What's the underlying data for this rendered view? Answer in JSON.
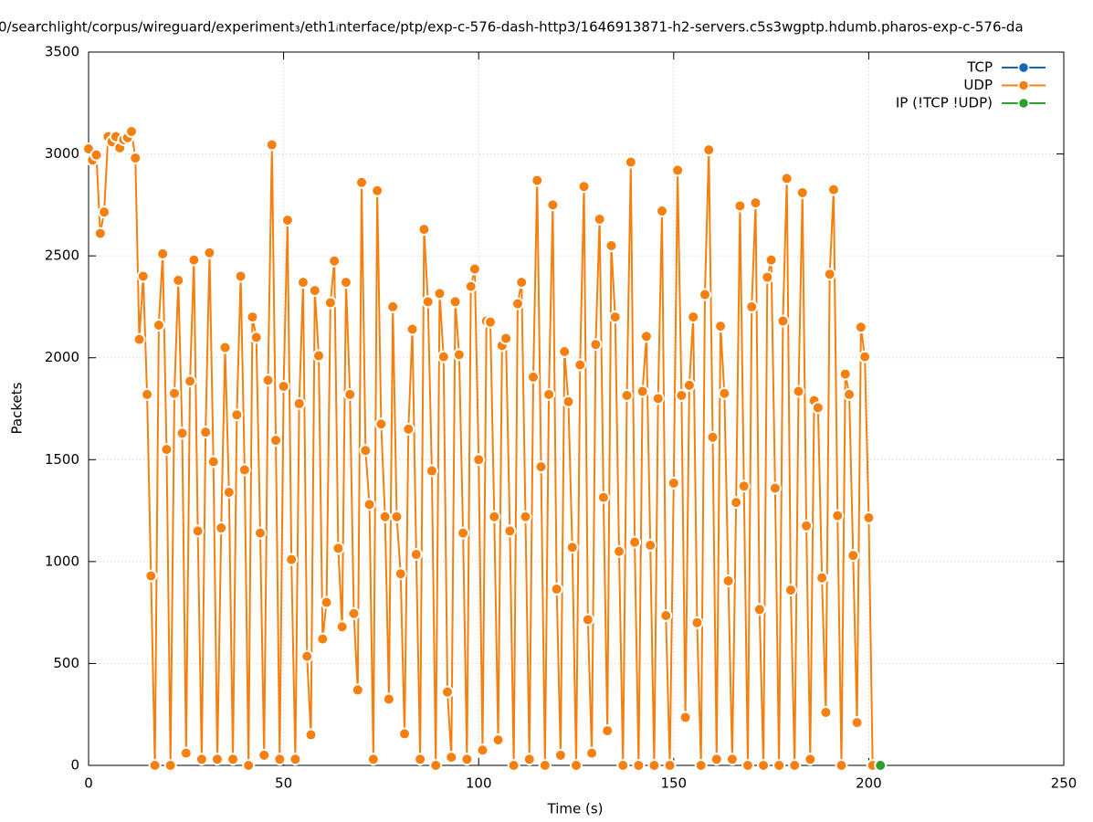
{
  "chart_data": {
    "type": "line",
    "title": "0/searchlight/corpus/wireguard/experiment₃/eth1ᵢnterface/ptp/exp-c-576-dash-http3/1646913871-h2-servers.c5s3wgptp.hdumb.pharos-exp-c-576-da",
    "x_label": "Time (s)",
    "y_label": "Packets",
    "xlim": [
      0,
      250
    ],
    "xticks": [
      0,
      50,
      100,
      150,
      200,
      250
    ],
    "ylim": [
      0,
      3500
    ],
    "yticks": [
      0,
      500,
      1000,
      1500,
      2000,
      2500,
      3000,
      3500
    ],
    "grid": true,
    "legend": "upper right",
    "series": [
      {
        "name": "TCP",
        "color": "#1565b0",
        "x": [],
        "values": []
      },
      {
        "name": "UDP",
        "color": "#f5800f",
        "x": [
          0,
          1,
          2,
          3,
          4,
          5,
          6,
          7,
          8,
          9,
          10,
          11,
          12,
          13,
          14,
          15,
          16,
          17,
          18,
          19,
          20,
          21,
          22,
          23,
          24,
          25,
          26,
          27,
          28,
          29,
          30,
          31,
          32,
          33,
          34,
          35,
          36,
          37,
          38,
          39,
          40,
          41,
          42,
          43,
          44,
          45,
          46,
          47,
          48,
          49,
          50,
          51,
          52,
          53,
          54,
          55,
          56,
          57,
          58,
          59,
          60,
          61,
          62,
          63,
          64,
          65,
          66,
          67,
          68,
          69,
          70,
          71,
          72,
          73,
          74,
          75,
          76,
          77,
          78,
          79,
          80,
          81,
          82,
          83,
          84,
          85,
          86,
          87,
          88,
          89,
          90,
          91,
          92,
          93,
          94,
          95,
          96,
          97,
          98,
          99,
          100,
          101,
          102,
          103,
          104,
          105,
          106,
          107,
          108,
          109,
          110,
          111,
          112,
          113,
          114,
          115,
          116,
          117,
          118,
          119,
          120,
          121,
          122,
          123,
          124,
          125,
          126,
          127,
          128,
          129,
          130,
          131,
          132,
          133,
          134,
          135,
          136,
          137,
          138,
          139,
          140,
          141,
          142,
          143,
          144,
          145,
          146,
          147,
          148,
          149,
          150,
          151,
          152,
          153,
          154,
          155,
          156,
          157,
          158,
          159,
          160,
          161,
          162,
          163,
          164,
          165,
          166,
          167,
          168,
          169,
          170,
          171,
          172,
          173,
          174,
          175,
          176,
          177,
          178,
          179,
          180,
          181,
          182,
          183,
          184,
          185,
          186,
          187,
          188,
          189,
          190,
          191,
          192,
          193,
          194,
          195,
          196,
          197,
          198,
          199,
          200,
          201
        ],
        "values": [
          3025,
          2970,
          2995,
          2610,
          2715,
          3085,
          3060,
          3085,
          3030,
          3070,
          3080,
          3110,
          2980,
          2090,
          2400,
          1820,
          930,
          0,
          2160,
          2510,
          1550,
          0,
          1825,
          2380,
          1630,
          60,
          1885,
          2480,
          1150,
          30,
          1635,
          2515,
          1490,
          30,
          1165,
          2050,
          1340,
          30,
          1720,
          2400,
          1450,
          0,
          2200,
          2100,
          1140,
          50,
          1890,
          3045,
          1595,
          30,
          1860,
          2675,
          1010,
          30,
          1775,
          2370,
          535,
          150,
          2330,
          2010,
          620,
          800,
          2270,
          2475,
          1065,
          680,
          2370,
          1820,
          745,
          370,
          2860,
          1545,
          1280,
          30,
          2820,
          1675,
          1220,
          325,
          2250,
          1220,
          940,
          155,
          1650,
          2140,
          1035,
          30,
          2630,
          2275,
          1445,
          0,
          2315,
          2005,
          360,
          40,
          2275,
          2015,
          1140,
          30,
          2350,
          2435,
          1500,
          75,
          2180,
          2175,
          1220,
          125,
          2060,
          2095,
          1150,
          0,
          2265,
          2370,
          1220,
          30,
          1905,
          2870,
          1465,
          0,
          1820,
          2750,
          865,
          50,
          2030,
          1785,
          1070,
          0,
          1965,
          2840,
          715,
          60,
          2065,
          2680,
          1315,
          170,
          2550,
          2200,
          1050,
          0,
          1815,
          2960,
          1095,
          0,
          1835,
          2105,
          1080,
          0,
          1800,
          2720,
          735,
          0,
          1385,
          2920,
          1815,
          235,
          1865,
          2200,
          700,
          0,
          2310,
          3020,
          1610,
          30,
          2155,
          1825,
          905,
          30,
          1290,
          2745,
          1370,
          0,
          2250,
          2760,
          765,
          0,
          2395,
          2480,
          1360,
          0,
          2180,
          2880,
          860,
          0,
          1835,
          2810,
          1175,
          30,
          1790,
          1755,
          920,
          260,
          2410,
          2825,
          1225,
          0,
          1920,
          1820,
          1030,
          210,
          2150,
          2005,
          1215,
          0
        ]
      },
      {
        "name": "IP (!TCP  !UDP)",
        "color": "#2ca02c",
        "x": [
          203
        ],
        "values": [
          0
        ]
      }
    ]
  }
}
